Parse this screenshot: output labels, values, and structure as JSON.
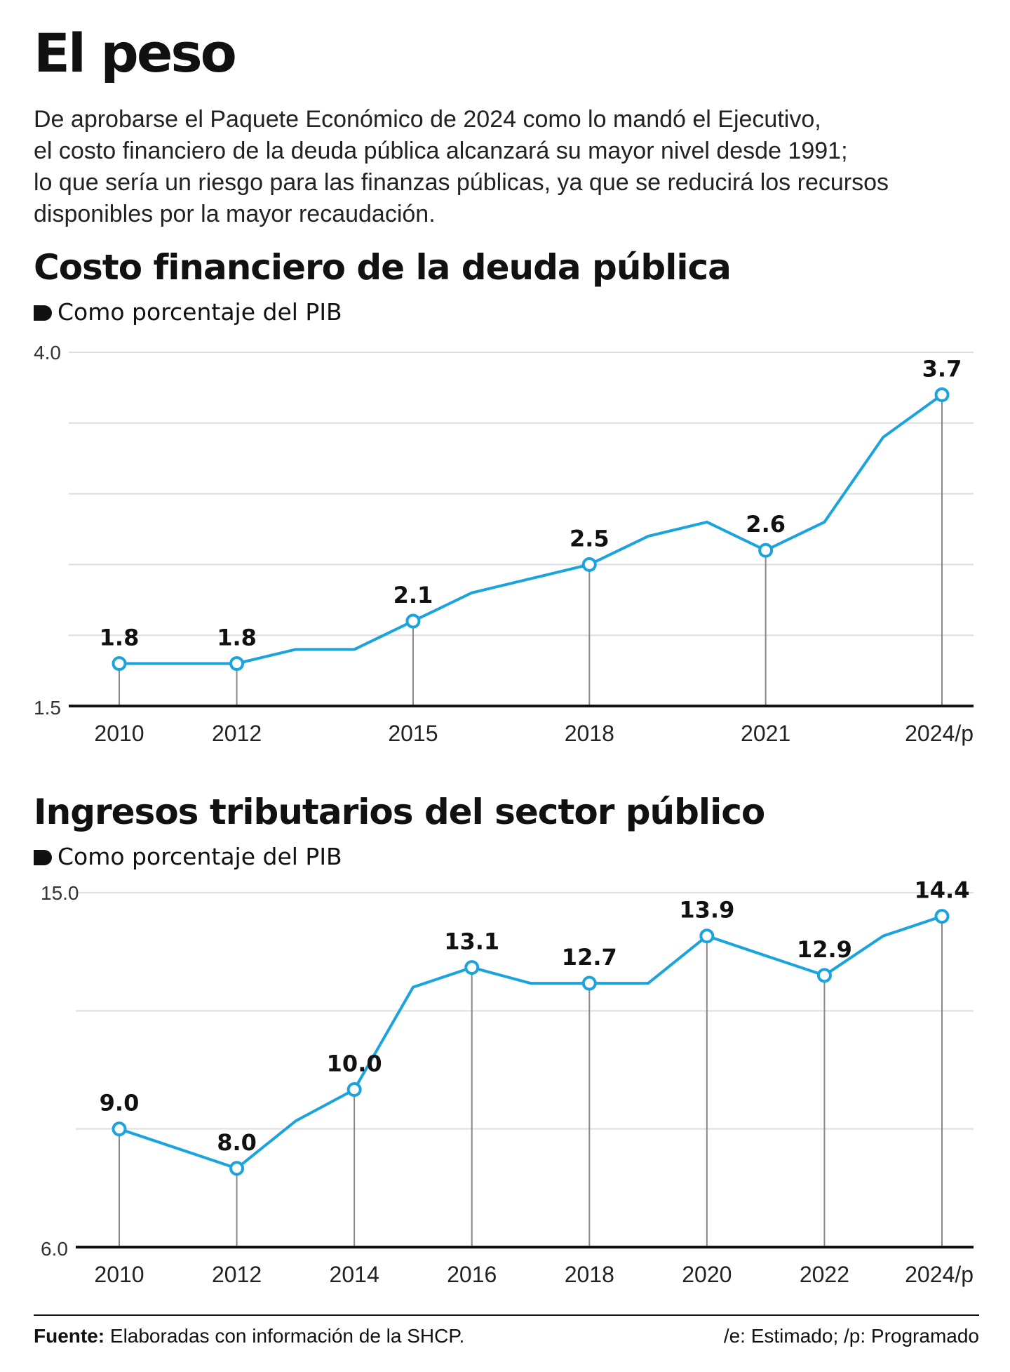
{
  "headline": "El peso",
  "intro": [
    "De aprobarse el Paquete Económico de 2024 como lo mandó el Ejecutivo,",
    "el costo financiero de la deuda pública alcanzará su mayor nivel desde 1991;",
    "lo que sería un riesgo para las finanzas públicas, ya que se reducirá los recursos",
    "disponibles por la mayor recaudación."
  ],
  "footer": {
    "source_label": "Fuente:",
    "source_text": "Elaboradas con información de la SHCP.",
    "notes": "/e: Estimado; /p: Programado"
  },
  "colors": {
    "line": "#1aa3dc",
    "text": "#111111",
    "grid": "#dddddd",
    "stem": "#888888"
  },
  "chart_data": [
    {
      "type": "line",
      "title": "Costo financiero de la deuda pública",
      "subtitle": "Como porcentaje del PIB",
      "x": [
        2010,
        2011,
        2012,
        2013,
        2014,
        2015,
        2016,
        2017,
        2018,
        2019,
        2020,
        2021,
        2022,
        2023,
        2024
      ],
      "values": [
        1.8,
        1.8,
        1.8,
        1.9,
        1.9,
        2.1,
        2.3,
        2.4,
        2.5,
        2.7,
        2.8,
        2.6,
        2.8,
        3.4,
        3.7
      ],
      "ylim": [
        1.5,
        4.0
      ],
      "ytick_labels": [
        "4.0",
        "1.5"
      ],
      "xtick_years": [
        2010,
        2012,
        2015,
        2018,
        2021,
        2024
      ],
      "xtick_labels": [
        "2010",
        "2012",
        "2015",
        "2018",
        "2021",
        "2024/p"
      ],
      "highlight_years": [
        2010,
        2012,
        2015,
        2018,
        2021,
        2024
      ],
      "highlight_labels": [
        "1.8",
        "1.8",
        "2.1",
        "2.5",
        "2.6",
        "3.7"
      ],
      "gridlines": 5
    },
    {
      "type": "line",
      "title": "Ingresos tributarios del sector público",
      "subtitle": "Como porcentaje del PIB",
      "x": [
        2010,
        2011,
        2012,
        2013,
        2014,
        2015,
        2016,
        2017,
        2018,
        2019,
        2020,
        2021,
        2022,
        2023,
        2024
      ],
      "values": [
        9.0,
        8.5,
        8.0,
        9.2,
        10.0,
        12.6,
        13.1,
        12.7,
        12.7,
        12.7,
        13.9,
        13.4,
        12.9,
        13.9,
        14.4
      ],
      "ylim": [
        6.0,
        15.0
      ],
      "ytick_labels": [
        "15.0",
        "6.0"
      ],
      "xtick_years": [
        2010,
        2012,
        2014,
        2016,
        2018,
        2020,
        2022,
        2024
      ],
      "xtick_labels": [
        "2010",
        "2012",
        "2014",
        "2016",
        "2018",
        "2020",
        "2022",
        "2024/p"
      ],
      "highlight_years": [
        2010,
        2012,
        2014,
        2016,
        2018,
        2020,
        2022,
        2024
      ],
      "highlight_labels": [
        "9.0",
        "8.0",
        "10.0",
        "13.1",
        "12.7",
        "13.9",
        "12.9",
        "14.4"
      ],
      "gridlines": 3
    }
  ]
}
